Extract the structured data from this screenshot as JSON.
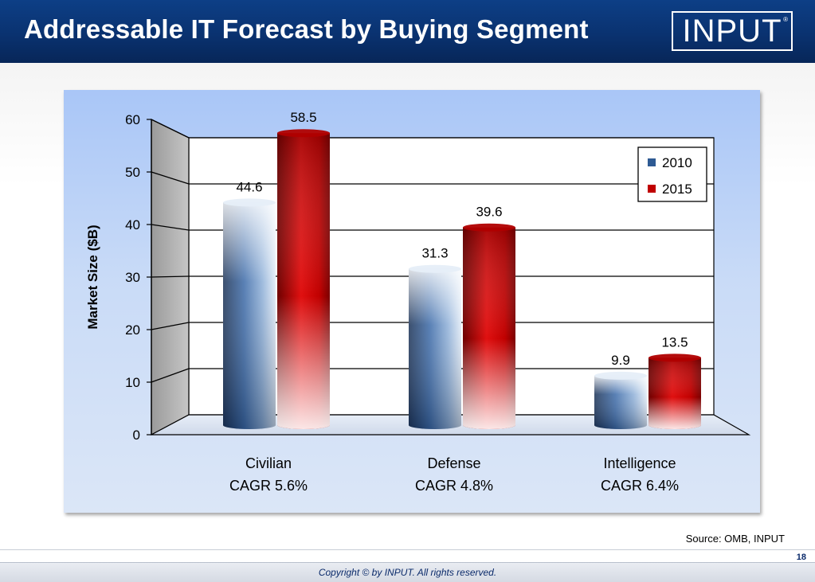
{
  "header": {
    "title": "Addressable IT Forecast by Buying Segment",
    "logo_text": "INPUT",
    "logo_mark": "®"
  },
  "source_note": "Source: OMB, INPUT",
  "footer": {
    "copyright": "Copyright © by INPUT. All rights reserved.",
    "page_number": "18"
  },
  "colors": {
    "header_blue": "#0a3270",
    "series_2010": "#1f4a85",
    "series_2015": "#c00000",
    "panel_blue": "#c9dbf7"
  },
  "chart_data": {
    "type": "bar",
    "title": "",
    "xlabel": "",
    "ylabel": "Market Size ($B)",
    "ylim": [
      0,
      60
    ],
    "yticks": [
      0,
      10,
      20,
      30,
      40,
      50,
      60
    ],
    "grid": true,
    "legend": "top-right",
    "categories": [
      "Civilian\nCAGR 5.6%",
      "Defense\nCAGR 4.8%",
      "Intelligence\nCAGR 6.4%"
    ],
    "category_lines": [
      [
        "Civilian",
        "CAGR 5.6%"
      ],
      [
        "Defense",
        "CAGR 4.8%"
      ],
      [
        "Intelligence",
        "CAGR 6.4%"
      ]
    ],
    "series": [
      {
        "name": "2010",
        "values": [
          44.6,
          31.3,
          9.9
        ],
        "labels": [
          "44.6",
          "31.3",
          "9.9"
        ]
      },
      {
        "name": "2015",
        "values": [
          58.5,
          39.6,
          13.5
        ],
        "labels": [
          "58.5",
          "39.6",
          "13.5"
        ]
      }
    ]
  }
}
